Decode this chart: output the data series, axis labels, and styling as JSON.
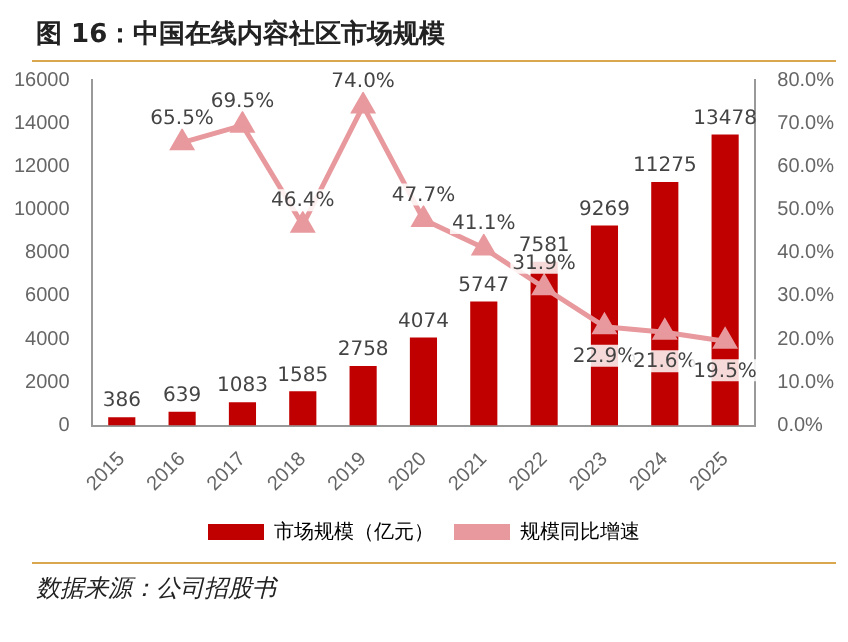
{
  "chart_data": {
    "type": "bar",
    "title": "图 16：中国在线内容社区市场规模",
    "categories": [
      "2015",
      "2016",
      "2017",
      "2018",
      "2019",
      "2020",
      "2021",
      "2022",
      "2023",
      "2024",
      "2025"
    ],
    "series": [
      {
        "name": "市场规模（亿元）",
        "color": "#c00000",
        "values": [
          386,
          639,
          1083,
          1585,
          2758,
          4074,
          5747,
          7581,
          9269,
          11275,
          13478
        ],
        "value_labels": [
          "386",
          "639",
          "1083",
          "1585",
          "2758",
          "4074",
          "5747",
          "7581",
          "9269",
          "11275",
          "13478"
        ]
      },
      {
        "name": "规模同比增速",
        "type": "line",
        "axis": "y2",
        "color": "#e8999d",
        "marker": "triangle",
        "values": [
          null,
          65.5,
          69.5,
          46.4,
          74.0,
          47.7,
          41.1,
          31.9,
          22.9,
          21.6,
          19.5
        ],
        "value_labels": [
          null,
          "65.5%",
          "69.5%",
          "46.4%",
          "74.0%",
          "47.7%",
          "41.1%",
          "31.9%",
          "22.9%",
          "21.6%",
          "19.5%"
        ]
      }
    ],
    "ylim": [
      0,
      16000
    ],
    "yticks": [
      0,
      2000,
      4000,
      6000,
      8000,
      10000,
      12000,
      14000,
      16000
    ],
    "y2lim": [
      0,
      80
    ],
    "y2ticks": [
      {
        "value": 0,
        "label": "0.0%"
      },
      {
        "value": 10,
        "label": "10.0%"
      },
      {
        "value": 20,
        "label": "20.0%"
      },
      {
        "value": 30,
        "label": "30.0%"
      },
      {
        "value": 40,
        "label": "40.0%"
      },
      {
        "value": 50,
        "label": "50.0%"
      },
      {
        "value": 60,
        "label": "60.0%"
      },
      {
        "value": 70,
        "label": "70.0%"
      },
      {
        "value": 80,
        "label": "80.0%"
      }
    ],
    "grid": false,
    "legend": "bottom",
    "annotations": [
      "数据来源：公司招股书"
    ]
  }
}
